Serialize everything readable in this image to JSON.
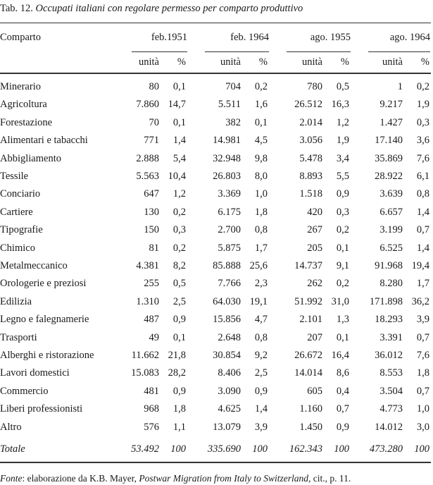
{
  "title": {
    "prefix": "Tab. 12.",
    "text": "Occupati italiani con regolare permesso per comparto produttivo"
  },
  "header": {
    "row_label": "Comparto",
    "groups": [
      "feb.1951",
      "feb. 1964",
      "ago. 1955",
      "ago. 1964"
    ],
    "sub": {
      "units": "unità",
      "pct": "%"
    }
  },
  "rows": [
    {
      "label": "Minerario",
      "values": [
        "80",
        "0,1",
        "704",
        "0,2",
        "780",
        "0,5",
        "1",
        "0,2"
      ]
    },
    {
      "label": "Agricoltura",
      "values": [
        "7.860",
        "14,7",
        "5.511",
        "1,6",
        "26.512",
        "16,3",
        "9.217",
        "1,9"
      ]
    },
    {
      "label": "Forestazione",
      "values": [
        "70",
        "0,1",
        "382",
        "0,1",
        "2.014",
        "1,2",
        "1.427",
        "0,3"
      ]
    },
    {
      "label": "Alimentari e tabacchi",
      "values": [
        "771",
        "1,4",
        "14.981",
        "4,5",
        "3.056",
        "1,9",
        "17.140",
        "3,6"
      ]
    },
    {
      "label": "Abbigliamento",
      "values": [
        "2.888",
        "5,4",
        "32.948",
        "9,8",
        "5.478",
        "3,4",
        "35.869",
        "7,6"
      ]
    },
    {
      "label": "Tessile",
      "values": [
        "5.563",
        "10,4",
        "26.803",
        "8,0",
        "8.893",
        "5,5",
        "28.922",
        "6,1"
      ]
    },
    {
      "label": "Conciario",
      "values": [
        "647",
        "1,2",
        "3.369",
        "1,0",
        "1.518",
        "0,9",
        "3.639",
        "0,8"
      ]
    },
    {
      "label": "Cartiere",
      "values": [
        "130",
        "0,2",
        "6.175",
        "1,8",
        "420",
        "0,3",
        "6.657",
        "1,4"
      ]
    },
    {
      "label": "Tipografie",
      "values": [
        "150",
        "0,3",
        "2.700",
        "0,8",
        "267",
        "0,2",
        "3.199",
        "0,7"
      ]
    },
    {
      "label": "Chimico",
      "values": [
        "81",
        "0,2",
        "5.875",
        "1,7",
        "205",
        "0,1",
        "6.525",
        "1,4"
      ]
    },
    {
      "label": "Metalmeccanico",
      "values": [
        "4.381",
        "8,2",
        "85.888",
        "25,6",
        "14.737",
        "9,1",
        "91.968",
        "19,4"
      ]
    },
    {
      "label": "Orologerie e preziosi",
      "values": [
        "255",
        "0,5",
        "7.766",
        "2,3",
        "262",
        "0,2",
        "8.280",
        "1,7"
      ]
    },
    {
      "label": "Edilizia",
      "values": [
        "1.310",
        "2,5",
        "64.030",
        "19,1",
        "51.992",
        "31,0",
        "171.898",
        "36,2"
      ]
    },
    {
      "label": "Legno e falegnamerie",
      "values": [
        "487",
        "0,9",
        "15.856",
        "4,7",
        "2.101",
        "1,3",
        "18.293",
        "3,9"
      ]
    },
    {
      "label": "Trasporti",
      "values": [
        "49",
        "0,1",
        "2.648",
        "0,8",
        "207",
        "0,1",
        "3.391",
        "0,7"
      ]
    },
    {
      "label": "Alberghi e ristorazione",
      "values": [
        "11.662",
        "21,8",
        "30.854",
        "9,2",
        "26.672",
        "16,4",
        "36.012",
        "7,6"
      ]
    },
    {
      "label": "Lavori domestici",
      "values": [
        "15.083",
        "28,2",
        "8.406",
        "2,5",
        "14.014",
        "8,6",
        "8.553",
        "1,8"
      ]
    },
    {
      "label": "Commercio",
      "values": [
        "481",
        "0,9",
        "3.090",
        "0,9",
        "605",
        "0,4",
        "3.504",
        "0,7"
      ]
    },
    {
      "label": "Liberi professionisti",
      "values": [
        "968",
        "1,8",
        "4.625",
        "1,4",
        "1.160",
        "0,7",
        "4.773",
        "1,0"
      ]
    },
    {
      "label": "Altro",
      "values": [
        "576",
        "1,1",
        "13.079",
        "3,9",
        "1.450",
        "0,9",
        "14.012",
        "3,0"
      ]
    }
  ],
  "total": {
    "label": "Totale",
    "values": [
      "53.492",
      "100",
      "335.690",
      "100",
      "162.343",
      "100",
      "473.280",
      "100"
    ]
  },
  "source": {
    "label": "Fonte",
    "text": ": elaborazione da K.B. Mayer, ",
    "work": "Postwar Migration from Italy to Switzerland",
    "tail": ", cit., p. 11."
  }
}
